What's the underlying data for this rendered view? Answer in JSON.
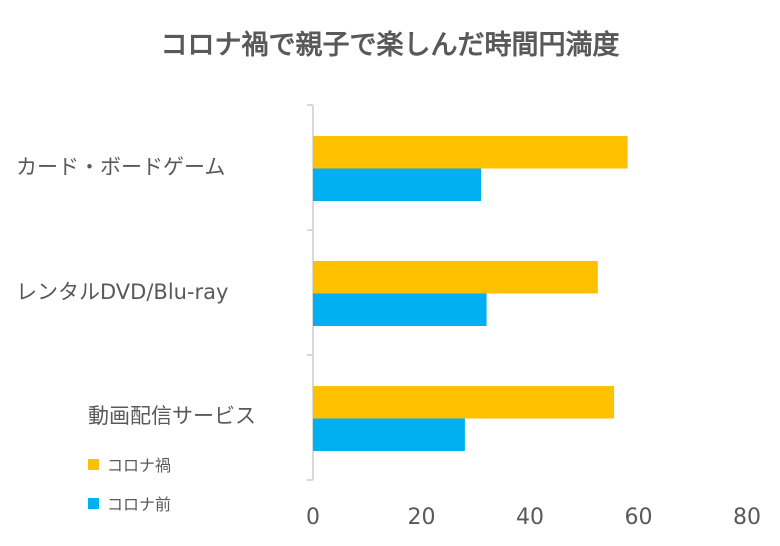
{
  "chart_data": {
    "type": "bar",
    "orientation": "horizontal",
    "title": "コロナ禍で親子で楽しんだ時間円満度",
    "categories": [
      "カード・ボードゲーム",
      "レンタルDVD/Blu-ray",
      "動画配信サービス"
    ],
    "series": [
      {
        "name": "コロナ禍",
        "color": "#FFC000",
        "values": [
          58,
          52.5,
          55.5
        ]
      },
      {
        "name": "コロナ前",
        "color": "#00B0F0",
        "values": [
          31,
          32,
          28
        ]
      }
    ],
    "xlim": [
      0,
      80
    ],
    "xticks": [
      "0",
      "20",
      "40",
      "60",
      "80"
    ],
    "xlabel": "",
    "ylabel": "",
    "grid": false,
    "legend_placement": "bottom-left"
  }
}
